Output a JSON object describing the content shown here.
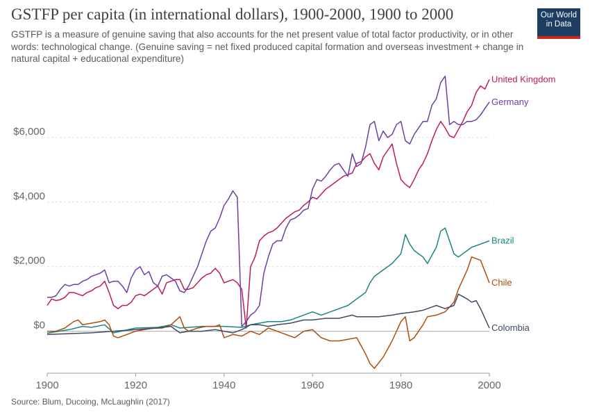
{
  "header": {
    "title": "GSTFP per capita (in international dollars), 1900-2000, 1900 to 2000",
    "subtitle": "GSTFP is a measure of genuine saving that also accounts for the net present value of total factor productivity, or in other words: technological change. (Genuine saving = net fixed produced capital formation and overseas investment + change in natural capital + educational expenditure)"
  },
  "logo": {
    "line1": "Our World",
    "line2": "in Data",
    "bg_color": "#1d3d63",
    "accent_color": "#ce261e"
  },
  "footer": {
    "source": "Source: Blum, Ducoing, McLaughlin (2017)"
  },
  "chart_data": {
    "type": "line",
    "title": "GSTFP per capita (in international dollars), 1900-2000, 1900 to 2000",
    "xlim": [
      1900,
      2000
    ],
    "ylim": [
      -1300,
      8000
    ],
    "x_ticks": [
      1900,
      1920,
      1940,
      1960,
      1980,
      2000
    ],
    "x_tick_labels": [
      "1900",
      "1920",
      "1940",
      "1960",
      "1980",
      "2000"
    ],
    "y_ticks": [
      0,
      2000,
      4000,
      6000
    ],
    "y_tick_labels": [
      "$0",
      "$2,000",
      "$4,000",
      "$6,000"
    ],
    "grid": "horizontal dashed",
    "legend": "line-end labels",
    "series": [
      {
        "name": "United Kingdom",
        "color": "#c2185b",
        "x": [
          1900,
          1901,
          1902,
          1903,
          1904,
          1905,
          1906,
          1907,
          1908,
          1909,
          1910,
          1911,
          1912,
          1913,
          1914,
          1915,
          1916,
          1917,
          1918,
          1919,
          1920,
          1921,
          1922,
          1923,
          1924,
          1925,
          1926,
          1927,
          1928,
          1929,
          1930,
          1931,
          1932,
          1933,
          1934,
          1935,
          1936,
          1937,
          1938,
          1939,
          1940,
          1941,
          1942,
          1943,
          1944,
          1945,
          1946,
          1947,
          1948,
          1949,
          1950,
          1951,
          1952,
          1953,
          1954,
          1955,
          1956,
          1957,
          1958,
          1959,
          1960,
          1961,
          1962,
          1963,
          1964,
          1965,
          1966,
          1967,
          1968,
          1969,
          1970,
          1971,
          1972,
          1973,
          1974,
          1975,
          1976,
          1977,
          1978,
          1979,
          1980,
          1981,
          1982,
          1983,
          1984,
          1985,
          1986,
          1987,
          1988,
          1989,
          1990,
          1991,
          1992,
          1993,
          1994,
          1995,
          1996,
          1997,
          1998,
          1999,
          2000
        ],
        "y": [
          800,
          1000,
          950,
          980,
          1050,
          1200,
          1200,
          1150,
          1100,
          1200,
          1250,
          1350,
          1400,
          1550,
          1200,
          800,
          700,
          800,
          800,
          900,
          1100,
          1150,
          1100,
          1200,
          1300,
          1400,
          1150,
          1500,
          1550,
          1600,
          1600,
          1300,
          1300,
          1350,
          1500,
          1650,
          1750,
          1800,
          1950,
          1800,
          1500,
          1550,
          1600,
          1500,
          1300,
          100,
          2000,
          2300,
          2800,
          2950,
          3050,
          3100,
          3200,
          3350,
          3500,
          3600,
          3700,
          3750,
          3900,
          4000,
          4150,
          4100,
          4250,
          4400,
          4500,
          4600,
          4700,
          4800,
          4850,
          4900,
          5200,
          5250,
          5400,
          5500,
          5200,
          5000,
          5400,
          5600,
          5800,
          5200,
          4700,
          4550,
          4450,
          4700,
          5000,
          5200,
          5500,
          5900,
          6250,
          6500,
          6300,
          6050,
          6000,
          6250,
          6500,
          6800,
          7000,
          7400,
          7600,
          7500,
          7800
        ]
      },
      {
        "name": "Germany",
        "color": "#6b3fa0",
        "x": [
          1900,
          1901,
          1902,
          1903,
          1904,
          1905,
          1906,
          1907,
          1908,
          1909,
          1910,
          1911,
          1912,
          1913,
          1914,
          1915,
          1916,
          1917,
          1918,
          1919,
          1920,
          1921,
          1922,
          1923,
          1924,
          1925,
          1926,
          1927,
          1928,
          1929,
          1930,
          1931,
          1932,
          1933,
          1934,
          1935,
          1936,
          1937,
          1938,
          1939,
          1940,
          1941,
          1942,
          1943,
          1944,
          1945,
          1946,
          1947,
          1948,
          1949,
          1950,
          1951,
          1952,
          1953,
          1954,
          1955,
          1956,
          1957,
          1958,
          1959,
          1960,
          1961,
          1962,
          1963,
          1964,
          1965,
          1966,
          1967,
          1968,
          1969,
          1970,
          1971,
          1972,
          1973,
          1974,
          1975,
          1976,
          1977,
          1978,
          1979,
          1980,
          1981,
          1982,
          1983,
          1984,
          1985,
          1986,
          1987,
          1988,
          1989,
          1990,
          1991,
          1992,
          1993,
          1994,
          1995,
          1996,
          1997,
          1998,
          1999,
          2000
        ],
        "y": [
          1050,
          1050,
          1100,
          1300,
          1450,
          1400,
          1450,
          1450,
          1550,
          1600,
          1700,
          1750,
          1800,
          1900,
          1500,
          1550,
          1550,
          1400,
          1200,
          1650,
          1900,
          2000,
          1750,
          1850,
          1500,
          1400,
          1700,
          1750,
          1650,
          1550,
          1250,
          1200,
          1400,
          1700,
          2000,
          2400,
          2800,
          3100,
          3200,
          3500,
          3900,
          4100,
          4350,
          4150,
          150,
          300,
          500,
          600,
          800,
          1800,
          2300,
          2700,
          2800,
          2800,
          3200,
          3450,
          3500,
          3600,
          3750,
          3800,
          4400,
          4700,
          4650,
          4800,
          5000,
          5150,
          5200,
          5000,
          4800,
          5500,
          5100,
          5200,
          5700,
          6400,
          6500,
          5900,
          6200,
          6000,
          6100,
          6400,
          6500,
          5900,
          5800,
          6100,
          6300,
          6500,
          6500,
          7000,
          7200,
          7700,
          7900,
          6400,
          6500,
          6400,
          6400,
          6500,
          6500,
          6550,
          6700,
          6900,
          7100
        ]
      },
      {
        "name": "Brazil",
        "color": "#18867e",
        "x": [
          1900,
          1905,
          1908,
          1910,
          1913,
          1915,
          1920,
          1925,
          1928,
          1930,
          1935,
          1940,
          1944,
          1946,
          1950,
          1953,
          1955,
          1958,
          1960,
          1962,
          1965,
          1968,
          1970,
          1972,
          1973,
          1974,
          1976,
          1978,
          1980,
          1981,
          1982,
          1983,
          1985,
          1986,
          1988,
          1989,
          1990,
          1992,
          1993,
          1995,
          1996,
          1998,
          2000
        ],
        "y": [
          -60,
          50,
          150,
          120,
          200,
          -50,
          100,
          120,
          200,
          100,
          150,
          150,
          120,
          200,
          300,
          300,
          350,
          500,
          600,
          500,
          650,
          800,
          1000,
          1200,
          1500,
          1700,
          1900,
          2100,
          2400,
          3000,
          2700,
          2500,
          2300,
          2100,
          2600,
          3100,
          3200,
          2400,
          2300,
          2500,
          2600,
          2700,
          2800
        ]
      },
      {
        "name": "Chile",
        "color": "#b24b0b",
        "x": [
          1900,
          1902,
          1904,
          1906,
          1907,
          1908,
          1910,
          1912,
          1913,
          1914,
          1915,
          1916,
          1918,
          1920,
          1922,
          1924,
          1926,
          1928,
          1930,
          1931,
          1932,
          1934,
          1936,
          1938,
          1939,
          1940,
          1942,
          1944,
          1946,
          1948,
          1950,
          1952,
          1954,
          1956,
          1958,
          1960,
          1962,
          1964,
          1966,
          1968,
          1970,
          1972,
          1973,
          1974,
          1976,
          1978,
          1980,
          1981,
          1982,
          1983,
          1985,
          1986,
          1988,
          1990,
          1992,
          1993,
          1995,
          1996,
          1998,
          2000
        ],
        "y": [
          0,
          0,
          100,
          300,
          350,
          200,
          250,
          300,
          350,
          200,
          -150,
          -200,
          -100,
          0,
          50,
          100,
          100,
          200,
          450,
          100,
          0,
          100,
          150,
          150,
          200,
          -200,
          -100,
          -150,
          0,
          -100,
          100,
          0,
          -100,
          -200,
          0,
          50,
          -200,
          -300,
          -300,
          -250,
          -200,
          -700,
          -1000,
          -1150,
          -800,
          -300,
          300,
          450,
          -300,
          -200,
          200,
          450,
          500,
          600,
          900,
          1300,
          1900,
          2300,
          2200,
          1500
        ]
      },
      {
        "name": "Colombia",
        "color": "#3e4a60",
        "x": [
          1900,
          1910,
          1920,
          1925,
          1928,
          1930,
          1932,
          1935,
          1938,
          1940,
          1942,
          1944,
          1946,
          1948,
          1950,
          1952,
          1955,
          1958,
          1960,
          1963,
          1966,
          1969,
          1970,
          1972,
          1975,
          1978,
          1980,
          1983,
          1985,
          1987,
          1988,
          1990,
          1992,
          1993,
          1995,
          1996,
          1997,
          1998,
          2000
        ],
        "y": [
          -100,
          -50,
          50,
          100,
          150,
          -50,
          0,
          0,
          50,
          0,
          -50,
          50,
          200,
          200,
          150,
          200,
          250,
          350,
          350,
          400,
          400,
          500,
          450,
          450,
          450,
          500,
          550,
          600,
          650,
          750,
          800,
          700,
          800,
          1150,
          1000,
          900,
          950,
          700,
          100
        ]
      }
    ]
  }
}
